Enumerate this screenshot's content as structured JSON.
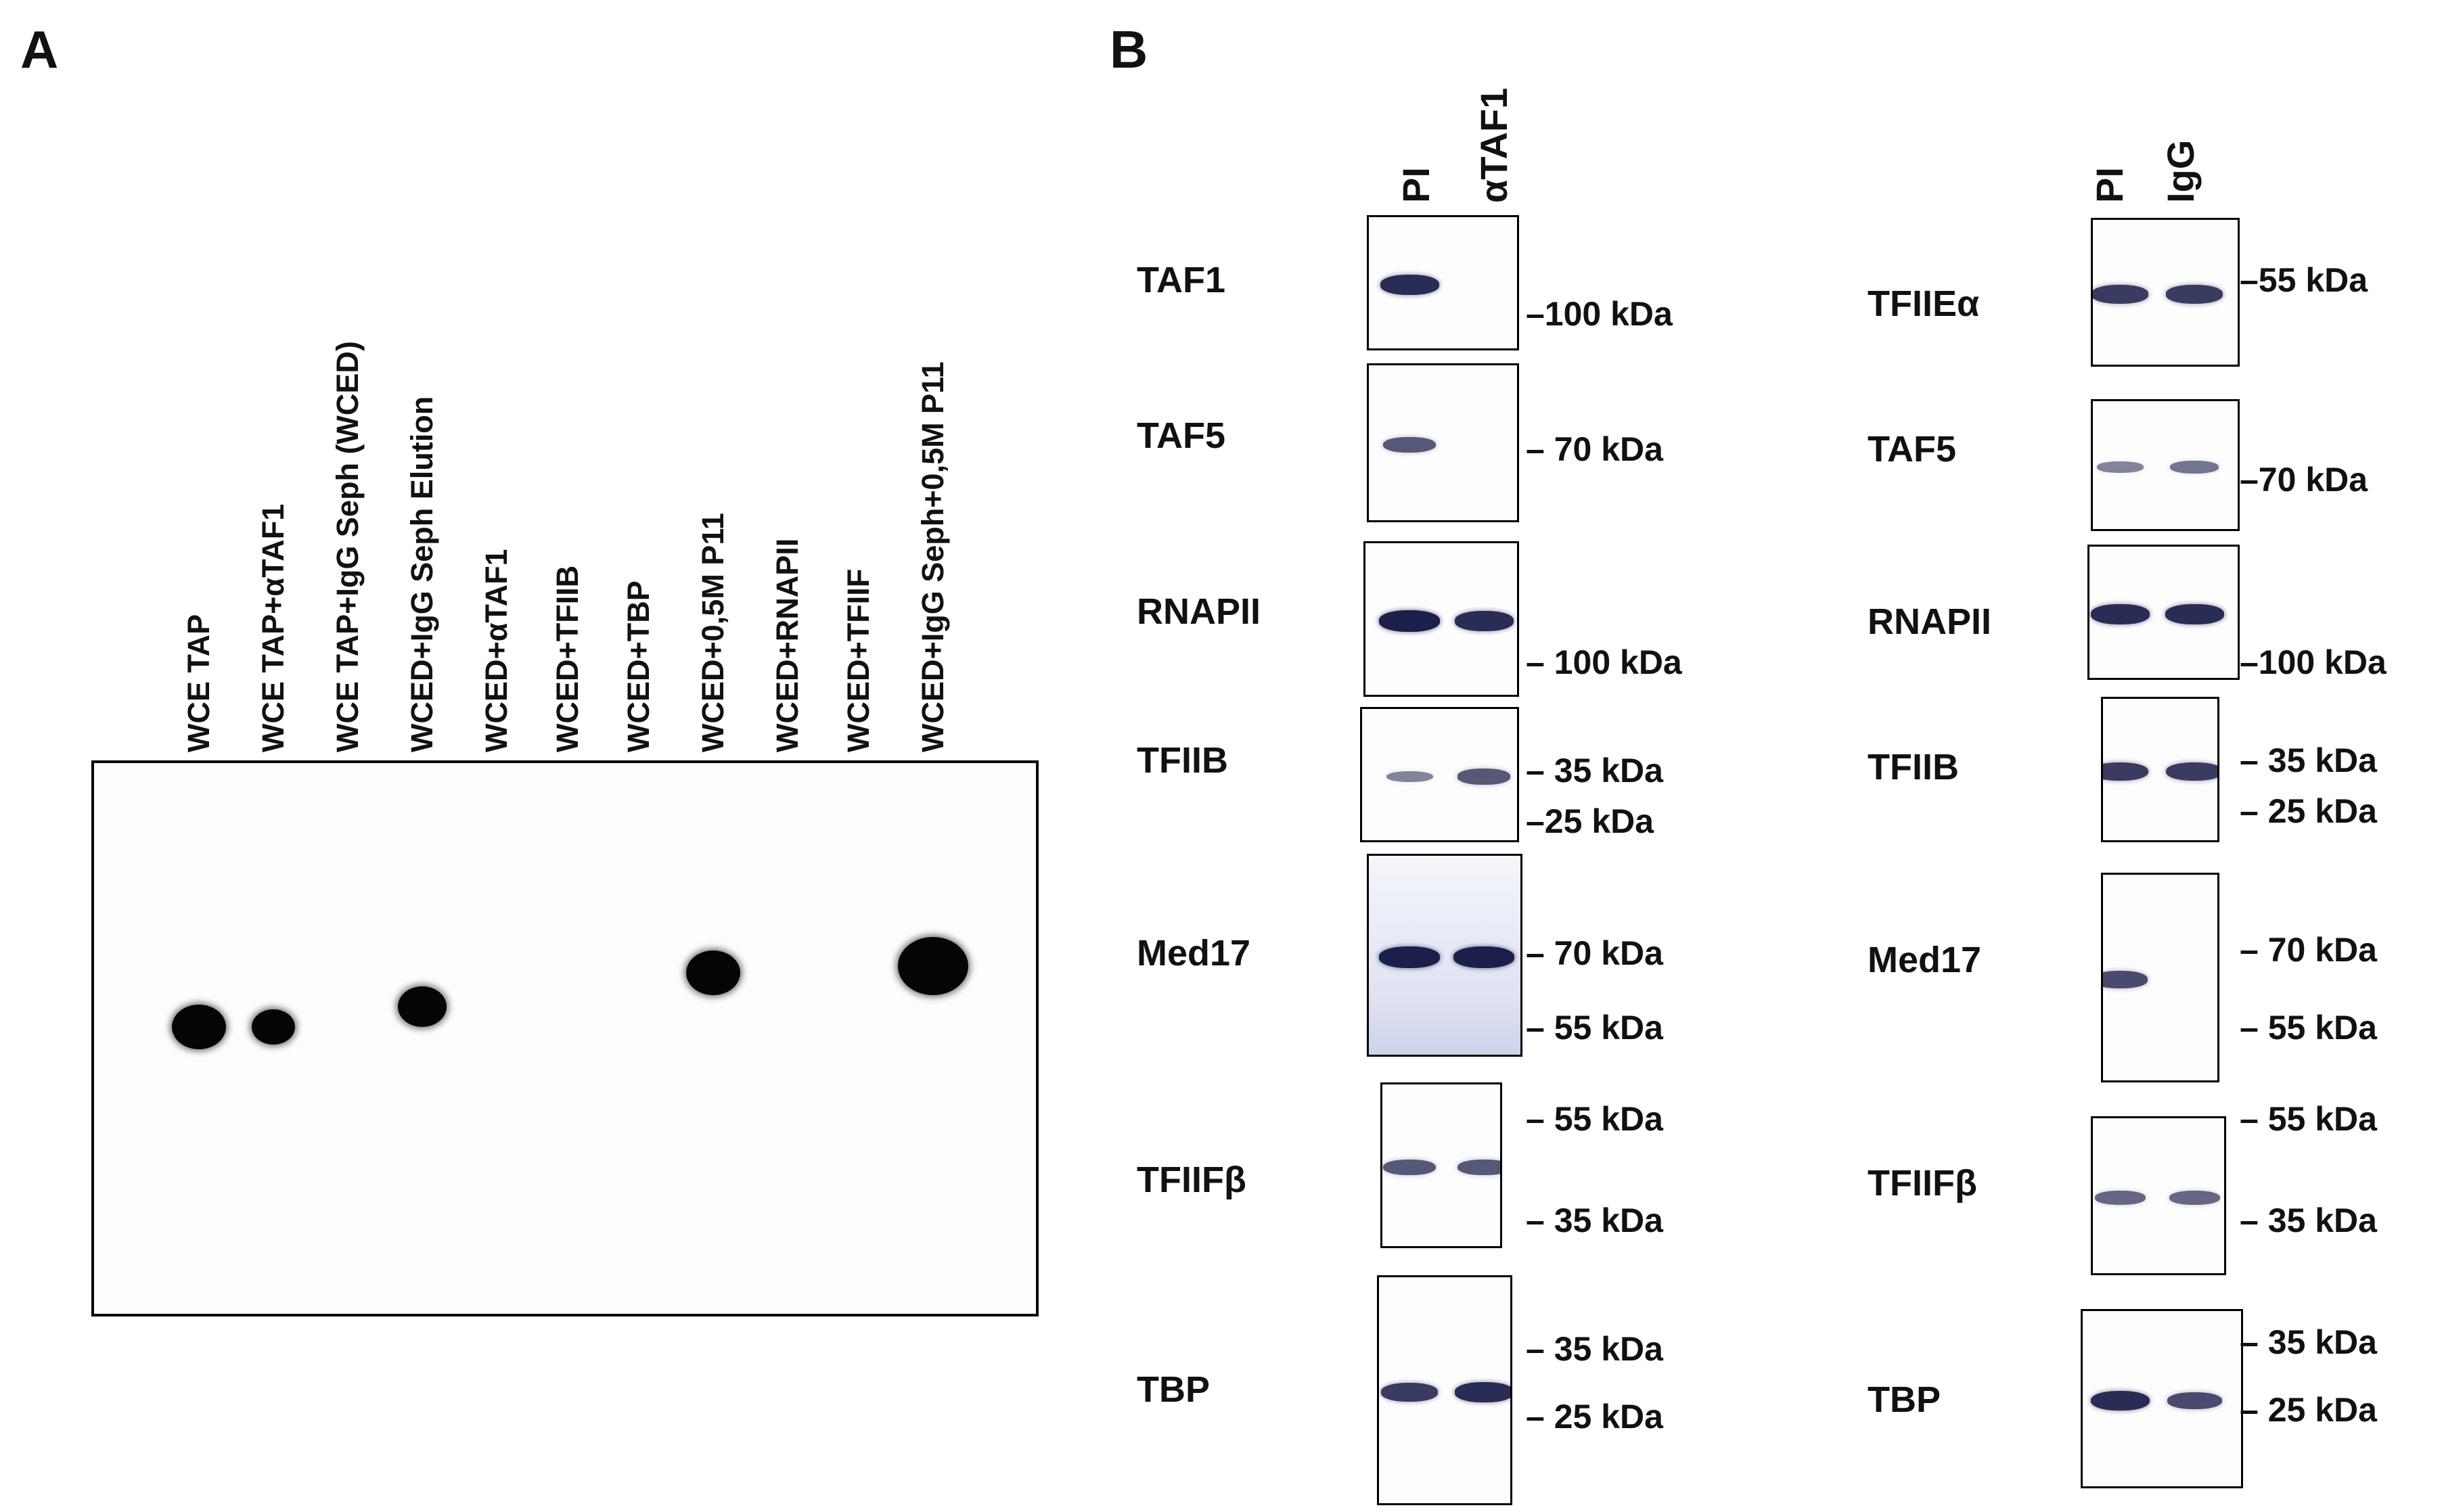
{
  "panels": {
    "a": "A",
    "b": "B"
  },
  "panelA": {
    "lanes": [
      "WCE TAP",
      "WCE TAP+αTAF1",
      "WCE TAP+IgG Seph (WCED)",
      "WCED+IgG Seph Elution",
      "WCED+αTAF1",
      "WCED+TFIIB",
      "WCED+TBP",
      "WCED+0,5M P11",
      "WCED+RNAPII",
      "WCED+TFIIF",
      "WCED+IgG Seph+0,5M P11"
    ],
    "signal": [
      1.0,
      0.8,
      0,
      0.9,
      0,
      0,
      0,
      1.0,
      0,
      0,
      1.3
    ]
  },
  "panelB": {
    "left": {
      "columns": [
        "PI",
        "αTAF1"
      ],
      "rows": [
        {
          "protein": "TAF1",
          "markers": [
            "–100 kDa"
          ],
          "bands": [
            0.9,
            0
          ]
        },
        {
          "protein": "TAF5",
          "markers": [
            "– 70 kDa"
          ],
          "bands": [
            0.6,
            0
          ]
        },
        {
          "protein": "RNAPII",
          "markers": [
            "– 100 kDa"
          ],
          "bands": [
            1.0,
            0.9
          ]
        },
        {
          "protein": "TFIIB",
          "markers": [
            "– 35 kDa",
            "–25 kDa"
          ],
          "bands": [
            0.3,
            0.6
          ]
        },
        {
          "protein": "Med17",
          "markers": [
            "– 70 kDa",
            "– 55 kDa"
          ],
          "bands": [
            1.0,
            1.0
          ]
        },
        {
          "protein": "TFIIFβ",
          "markers": [
            "– 55 kDa",
            "– 35 kDa"
          ],
          "bands": [
            0.6,
            0.6
          ]
        },
        {
          "protein": "TBP",
          "markers": [
            "– 35 kDa",
            "– 25 kDa"
          ],
          "bands": [
            0.8,
            0.9
          ]
        }
      ]
    },
    "right": {
      "columns": [
        "PI",
        "IgG"
      ],
      "rows": [
        {
          "protein": "TFIIEα",
          "markers": [
            "–55 kDa"
          ],
          "bands": [
            0.8,
            0.8
          ]
        },
        {
          "protein": "TAF5",
          "markers": [
            "–70 kDa"
          ],
          "bands": [
            0.3,
            0.4
          ]
        },
        {
          "protein": "RNAPII",
          "markers": [
            "–100 kDa"
          ],
          "bands": [
            0.9,
            0.9
          ]
        },
        {
          "protein": "TFIIB",
          "markers": [
            "– 35 kDa",
            "– 25 kDa"
          ],
          "bands": [
            0.8,
            0.8
          ]
        },
        {
          "protein": "Med17",
          "markers": [
            "– 70 kDa",
            "– 55 kDa"
          ],
          "bands": [
            0.7,
            0
          ]
        },
        {
          "protein": "TFIIFβ",
          "markers": [
            "– 55 kDa",
            "– 35 kDa"
          ],
          "bands": [
            0.5,
            0.5
          ]
        },
        {
          "protein": "TBP",
          "markers": [
            "– 35 kDa",
            "– 25 kDa"
          ],
          "bands": [
            0.9,
            0.7
          ]
        }
      ]
    }
  },
  "colors": {
    "spot": "#050505",
    "band": "#1c1f4a",
    "blotTint": "#dfe3f2"
  }
}
